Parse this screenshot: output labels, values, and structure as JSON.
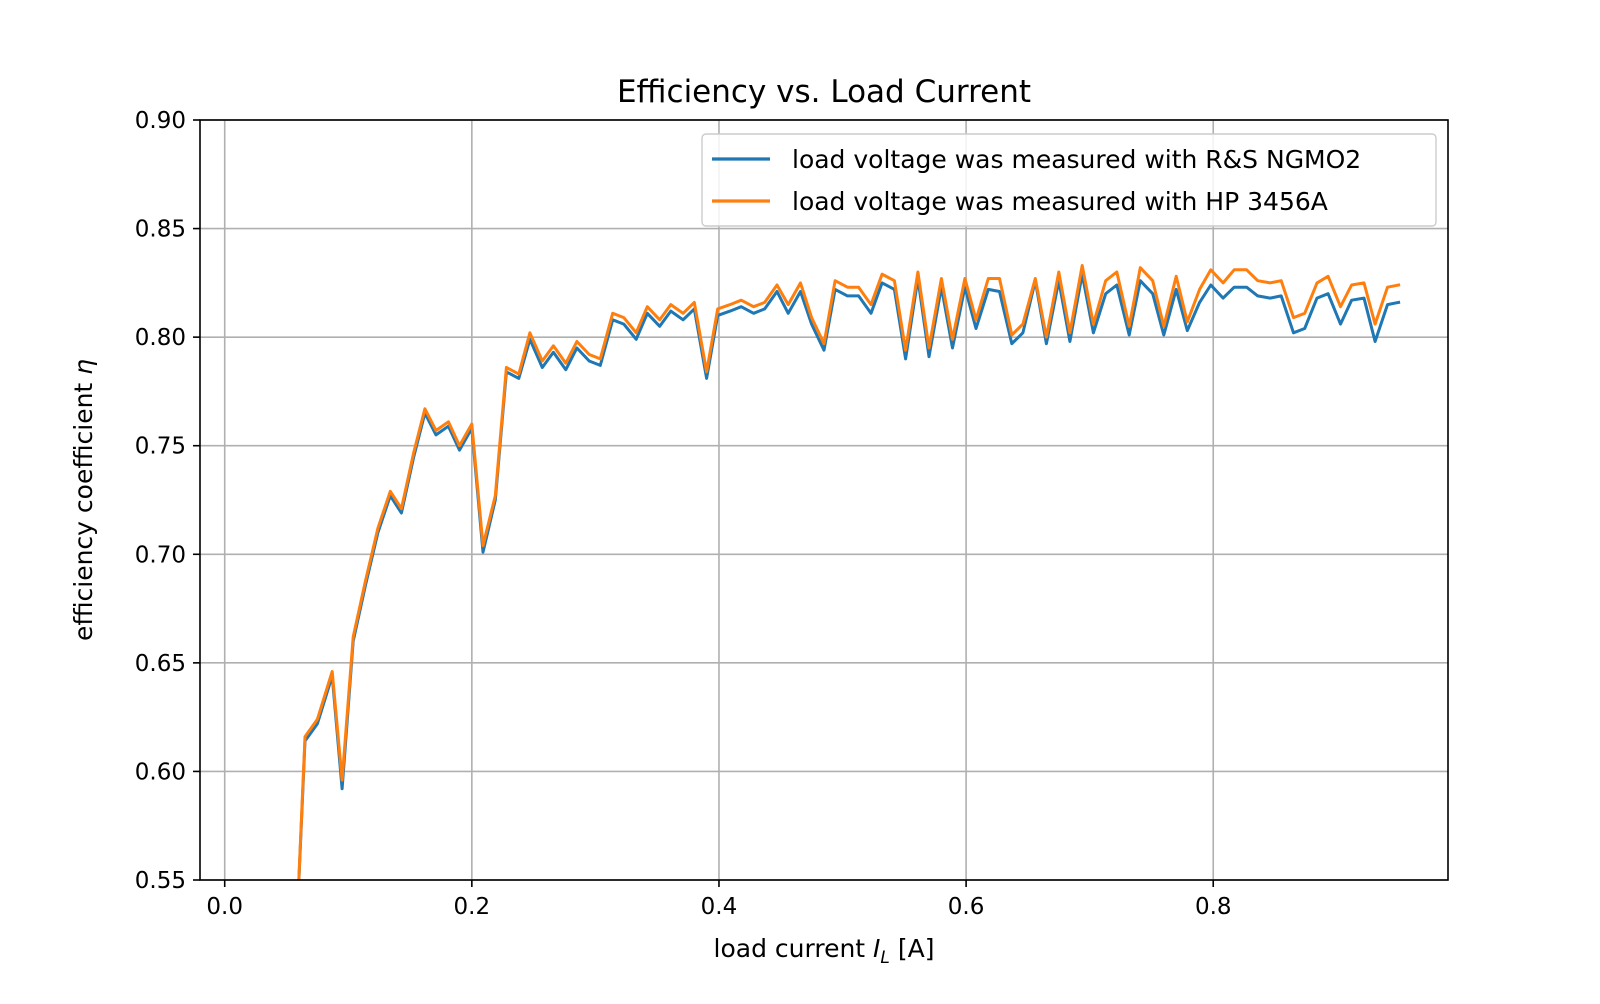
{
  "chart_data": {
    "type": "line",
    "title": "Efficiency vs. Load Current",
    "xlabel": {
      "prefix": "load current ",
      "symbol": "I",
      "subscript": "L",
      "suffix": " [A]"
    },
    "ylabel": {
      "prefix": "efficiency coefficient ",
      "symbol": "η"
    },
    "xlim": [
      -0.02,
      0.99
    ],
    "ylim": [
      0.55,
      0.9
    ],
    "xticks": [
      0.0,
      0.2,
      0.4,
      0.6,
      0.8
    ],
    "xtick_labels": [
      "0.0",
      "0.2",
      "0.4",
      "0.6",
      "0.8"
    ],
    "yticks": [
      0.55,
      0.6,
      0.65,
      0.7,
      0.75,
      0.8,
      0.85,
      0.9
    ],
    "ytick_labels": [
      "0.55",
      "0.60",
      "0.65",
      "0.70",
      "0.75",
      "0.80",
      "0.85",
      "0.90"
    ],
    "grid": true,
    "legend_position": "top-right",
    "x": [
      0.06,
      0.065,
      0.075,
      0.087,
      0.095,
      0.104,
      0.114,
      0.124,
      0.134,
      0.143,
      0.153,
      0.162,
      0.171,
      0.181,
      0.19,
      0.2,
      0.209,
      0.219,
      0.228,
      0.238,
      0.247,
      0.257,
      0.266,
      0.276,
      0.285,
      0.295,
      0.304,
      0.314,
      0.323,
      0.333,
      0.342,
      0.352,
      0.361,
      0.371,
      0.38,
      0.39,
      0.399,
      0.409,
      0.418,
      0.428,
      0.437,
      0.447,
      0.456,
      0.466,
      0.475,
      0.485,
      0.494,
      0.504,
      0.513,
      0.523,
      0.532,
      0.542,
      0.551,
      0.561,
      0.57,
      0.58,
      0.589,
      0.599,
      0.608,
      0.618,
      0.627,
      0.637,
      0.646,
      0.656,
      0.665,
      0.675,
      0.684,
      0.694,
      0.703,
      0.713,
      0.722,
      0.732,
      0.741,
      0.751,
      0.76,
      0.77,
      0.779,
      0.789,
      0.798,
      0.808,
      0.817,
      0.827,
      0.836,
      0.846,
      0.855,
      0.865,
      0.874,
      0.884,
      0.893,
      0.903,
      0.912,
      0.922,
      0.931,
      0.941,
      0.95
    ],
    "series": [
      {
        "name": "load voltage was measured with R&S NGMO2",
        "color": "#1f77b4",
        "values": [
          0.55,
          0.614,
          0.622,
          0.644,
          0.592,
          0.66,
          0.686,
          0.71,
          0.727,
          0.719,
          0.745,
          0.765,
          0.755,
          0.759,
          0.748,
          0.758,
          0.701,
          0.725,
          0.784,
          0.781,
          0.799,
          0.786,
          0.793,
          0.785,
          0.795,
          0.789,
          0.787,
          0.808,
          0.806,
          0.799,
          0.811,
          0.805,
          0.812,
          0.808,
          0.813,
          0.781,
          0.81,
          0.812,
          0.814,
          0.811,
          0.813,
          0.821,
          0.811,
          0.821,
          0.806,
          0.794,
          0.822,
          0.819,
          0.819,
          0.811,
          0.825,
          0.822,
          0.79,
          0.827,
          0.791,
          0.823,
          0.795,
          0.823,
          0.804,
          0.822,
          0.821,
          0.797,
          0.802,
          0.826,
          0.797,
          0.826,
          0.798,
          0.829,
          0.802,
          0.82,
          0.824,
          0.801,
          0.826,
          0.82,
          0.801,
          0.822,
          0.803,
          0.816,
          0.824,
          0.818,
          0.823,
          0.823,
          0.819,
          0.818,
          0.819,
          0.802,
          0.804,
          0.818,
          0.82,
          0.806,
          0.817,
          0.818,
          0.798,
          0.815,
          0.816
        ]
      },
      {
        "name": "load voltage was measured with HP 3456A",
        "color": "#ff7f0e",
        "values": [
          0.551,
          0.616,
          0.624,
          0.646,
          0.596,
          0.662,
          0.688,
          0.712,
          0.729,
          0.721,
          0.747,
          0.767,
          0.757,
          0.761,
          0.75,
          0.76,
          0.704,
          0.727,
          0.786,
          0.783,
          0.802,
          0.789,
          0.796,
          0.788,
          0.798,
          0.792,
          0.79,
          0.811,
          0.809,
          0.802,
          0.814,
          0.808,
          0.815,
          0.811,
          0.816,
          0.784,
          0.813,
          0.815,
          0.817,
          0.814,
          0.816,
          0.824,
          0.815,
          0.825,
          0.809,
          0.797,
          0.826,
          0.823,
          0.823,
          0.815,
          0.829,
          0.826,
          0.794,
          0.83,
          0.795,
          0.827,
          0.799,
          0.827,
          0.808,
          0.827,
          0.827,
          0.801,
          0.806,
          0.827,
          0.8,
          0.83,
          0.802,
          0.833,
          0.806,
          0.826,
          0.83,
          0.805,
          0.832,
          0.826,
          0.805,
          0.828,
          0.807,
          0.822,
          0.831,
          0.825,
          0.831,
          0.831,
          0.826,
          0.825,
          0.826,
          0.809,
          0.811,
          0.825,
          0.828,
          0.814,
          0.824,
          0.825,
          0.806,
          0.823,
          0.824
        ]
      }
    ]
  }
}
